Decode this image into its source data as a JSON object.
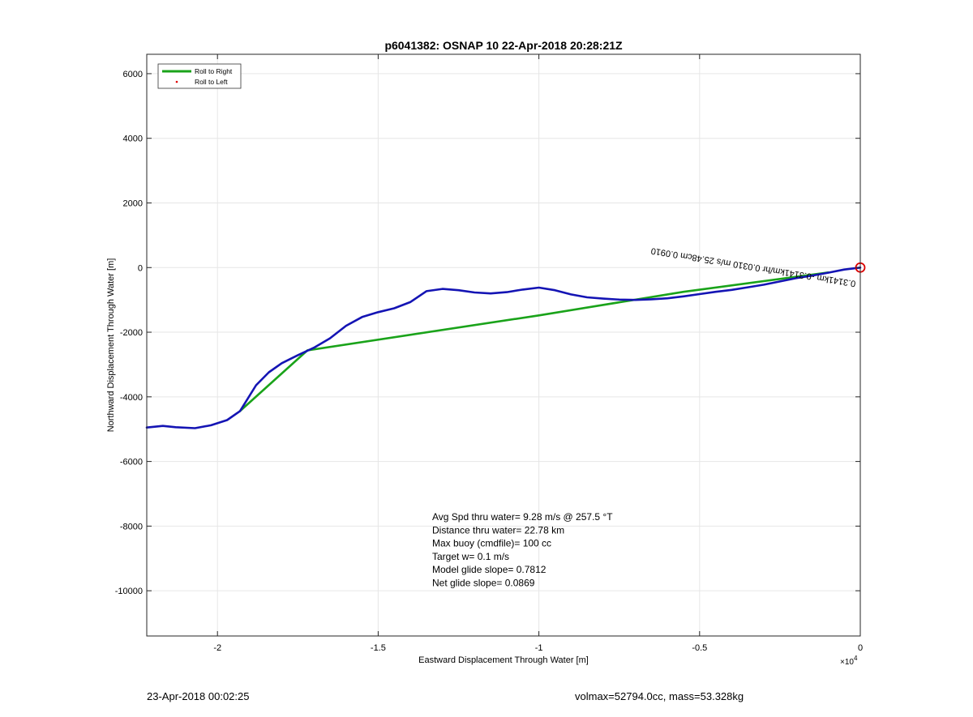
{
  "chart_data": {
    "type": "line",
    "title": "p6041382: OSNAP 10 22-Apr-2018 20:28:21Z",
    "xlabel": "Eastward Displacement Through Water [m]",
    "ylabel": "Northward Displacement Through Water [m]",
    "x_exponent_label": "×10",
    "x_exponent_power": "4",
    "xlim": [
      -22200,
      0
    ],
    "ylim": [
      -11400,
      6600
    ],
    "x_ticks": [
      -20000,
      -15000,
      -10000,
      -5000,
      0
    ],
    "x_tick_labels": [
      "-2",
      "-1.5",
      "-1",
      "-0.5",
      "0"
    ],
    "y_ticks": [
      6000,
      4000,
      2000,
      0,
      -2000,
      -4000,
      -6000,
      -8000,
      -10000
    ],
    "y_tick_labels": [
      "6000",
      "4000",
      "2000",
      "0",
      "-2000",
      "-4000",
      "-6000",
      "-8000",
      "-10000"
    ],
    "grid": true,
    "legend_position": "top-left",
    "series": [
      {
        "name": "Roll to Right",
        "color": "#1aa31a",
        "style": "line",
        "x": [
          -1000,
          -5500,
          -10000,
          -17200,
          -19300
        ],
        "y": [
          -150,
          -750,
          -1480,
          -2560,
          -4440
        ]
      },
      {
        "name": "Roll to Left",
        "color": "#e00000",
        "style": "marker",
        "x": [],
        "y": []
      },
      {
        "name": "",
        "color": "#1414b4",
        "style": "line",
        "x": [
          -22200,
          -21700,
          -21300,
          -20700,
          -20200,
          -19700,
          -19300,
          -18800,
          -18400,
          -18000,
          -17500,
          -17000,
          -16500,
          -16000,
          -15500,
          -15000,
          -14500,
          -14000,
          -13500,
          -13000,
          -12500,
          -12000,
          -11500,
          -11000,
          -10500,
          -10000,
          -9500,
          -9000,
          -8500,
          -8000,
          -7500,
          -7000,
          -6500,
          -6000,
          -5500,
          -5000,
          -4500,
          -4000,
          -3500,
          -3000,
          -2500,
          -2000,
          -1500,
          -1000,
          -500,
          0
        ],
        "y": [
          -4950,
          -4900,
          -4940,
          -4970,
          -4880,
          -4720,
          -4440,
          -3640,
          -3240,
          -2960,
          -2710,
          -2480,
          -2190,
          -1800,
          -1530,
          -1380,
          -1260,
          -1070,
          -730,
          -660,
          -700,
          -770,
          -800,
          -760,
          -680,
          -620,
          -700,
          -830,
          -920,
          -960,
          -990,
          -1000,
          -980,
          -950,
          -890,
          -820,
          -750,
          -690,
          -610,
          -530,
          -430,
          -330,
          -250,
          -160,
          -60,
          0
        ]
      }
    ],
    "marker": {
      "name": "current-position",
      "x": 0,
      "y": 0,
      "color": "#d90000"
    },
    "path_annotation": {
      "text": "0.3141km -0.3141km/hr 0.0310 m/s 25.48cm 0.0910",
      "color": "#000000"
    },
    "annotation": {
      "lines": [
        "Avg Spd thru water=  9.28 m/s @ 257.5 °T",
        "Distance thru water= 22.78 km",
        "Max buoy (cmdfile)= 100 cc",
        "Target w= 0.1 m/s",
        "Model glide slope= 0.7812",
        "Net glide slope= 0.0869"
      ]
    }
  },
  "footer": {
    "left": "23-Apr-2018 00:02:25",
    "right": "volmax=52794.0cc, mass=53.328kg"
  }
}
